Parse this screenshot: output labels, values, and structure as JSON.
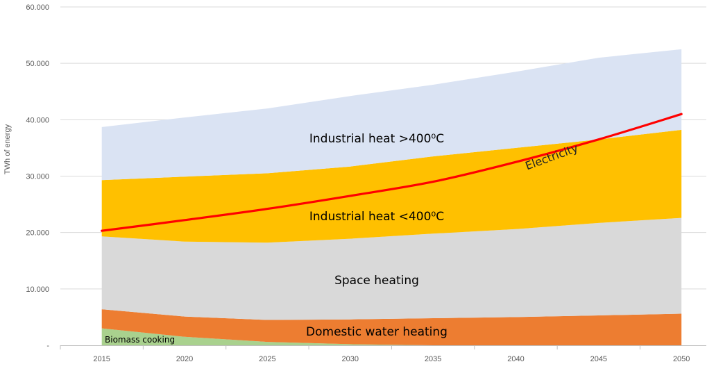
{
  "chart_data": {
    "type": "area",
    "title": "",
    "xlabel": "",
    "ylabel": "TWh of energy",
    "x": [
      2015,
      2020,
      2025,
      2030,
      2035,
      2040,
      2045,
      2050
    ],
    "xlim": [
      2012.5,
      2051.5
    ],
    "ylim": [
      0,
      60000
    ],
    "y_ticks": [
      0,
      10000,
      20000,
      30000,
      40000,
      50000,
      60000
    ],
    "y_tick_labels": [
      "-",
      "10.000",
      "20.000",
      "30.000",
      "40.000",
      "50.000",
      "60.000"
    ],
    "x_tick_labels": [
      "2015",
      "2020",
      "2025",
      "2030",
      "2035",
      "2040",
      "2045",
      "2050"
    ],
    "grid": true,
    "stacked": true,
    "series": [
      {
        "name": "Biomass cooking",
        "label": "Biomass cooking",
        "color": "#a9d18e",
        "values": [
          3000,
          1500,
          600,
          200,
          0,
          0,
          0,
          0
        ]
      },
      {
        "name": "Domestic water heating",
        "label": "Domestic water heating",
        "color": "#ed7d31",
        "values": [
          3400,
          3600,
          3900,
          4400,
          4800,
          5000,
          5300,
          5600
        ]
      },
      {
        "name": "Space heating",
        "label": "Space heating",
        "color": "#d9d9d9",
        "values": [
          12900,
          13300,
          13700,
          14300,
          15000,
          15600,
          16400,
          17000
        ]
      },
      {
        "name": "Industrial heat <400⁰C",
        "label": "Industrial heat <400⁰C",
        "color": "#ffc000",
        "values": [
          10000,
          11500,
          12300,
          12800,
          13700,
          14400,
          14800,
          15600
        ]
      },
      {
        "name": "Industrial heat >400⁰C",
        "label": "Industrial heat >400⁰C",
        "color": "#dae3f3",
        "values": [
          9400,
          10500,
          11500,
          12500,
          12700,
          13500,
          14500,
          14300
        ]
      }
    ],
    "line_series": [
      {
        "name": "Electricity",
        "label": "Electricity",
        "color": "#ff0000",
        "values": [
          20300,
          22200,
          24200,
          26500,
          29000,
          32500,
          36500,
          41000
        ]
      }
    ]
  }
}
